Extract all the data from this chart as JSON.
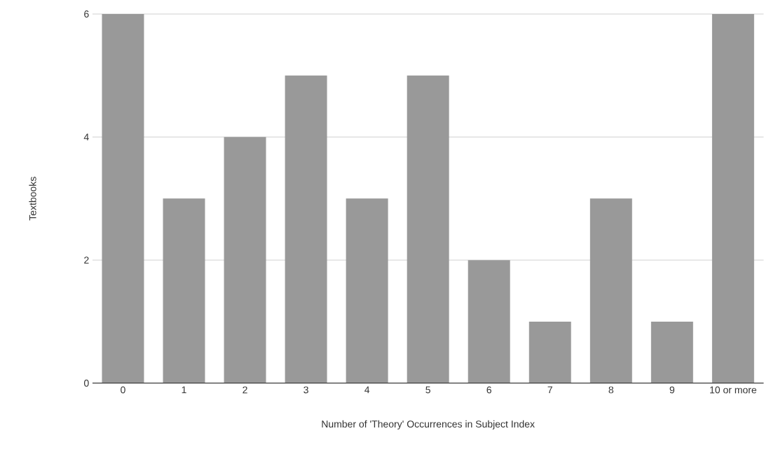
{
  "chart_data": {
    "type": "bar",
    "xlabel": "Number of 'Theory' Occurrences in Subject Index",
    "ylabel": "Textbooks",
    "categories": [
      "0",
      "1",
      "2",
      "3",
      "4",
      "5",
      "6",
      "7",
      "8",
      "9",
      "10 or more"
    ],
    "values": [
      6,
      3,
      4,
      5,
      3,
      5,
      2,
      1,
      3,
      1,
      6
    ],
    "color": "#999999",
    "ylim": [
      0,
      6
    ],
    "yticks": [
      0,
      2,
      4,
      6
    ],
    "grid": "y"
  }
}
